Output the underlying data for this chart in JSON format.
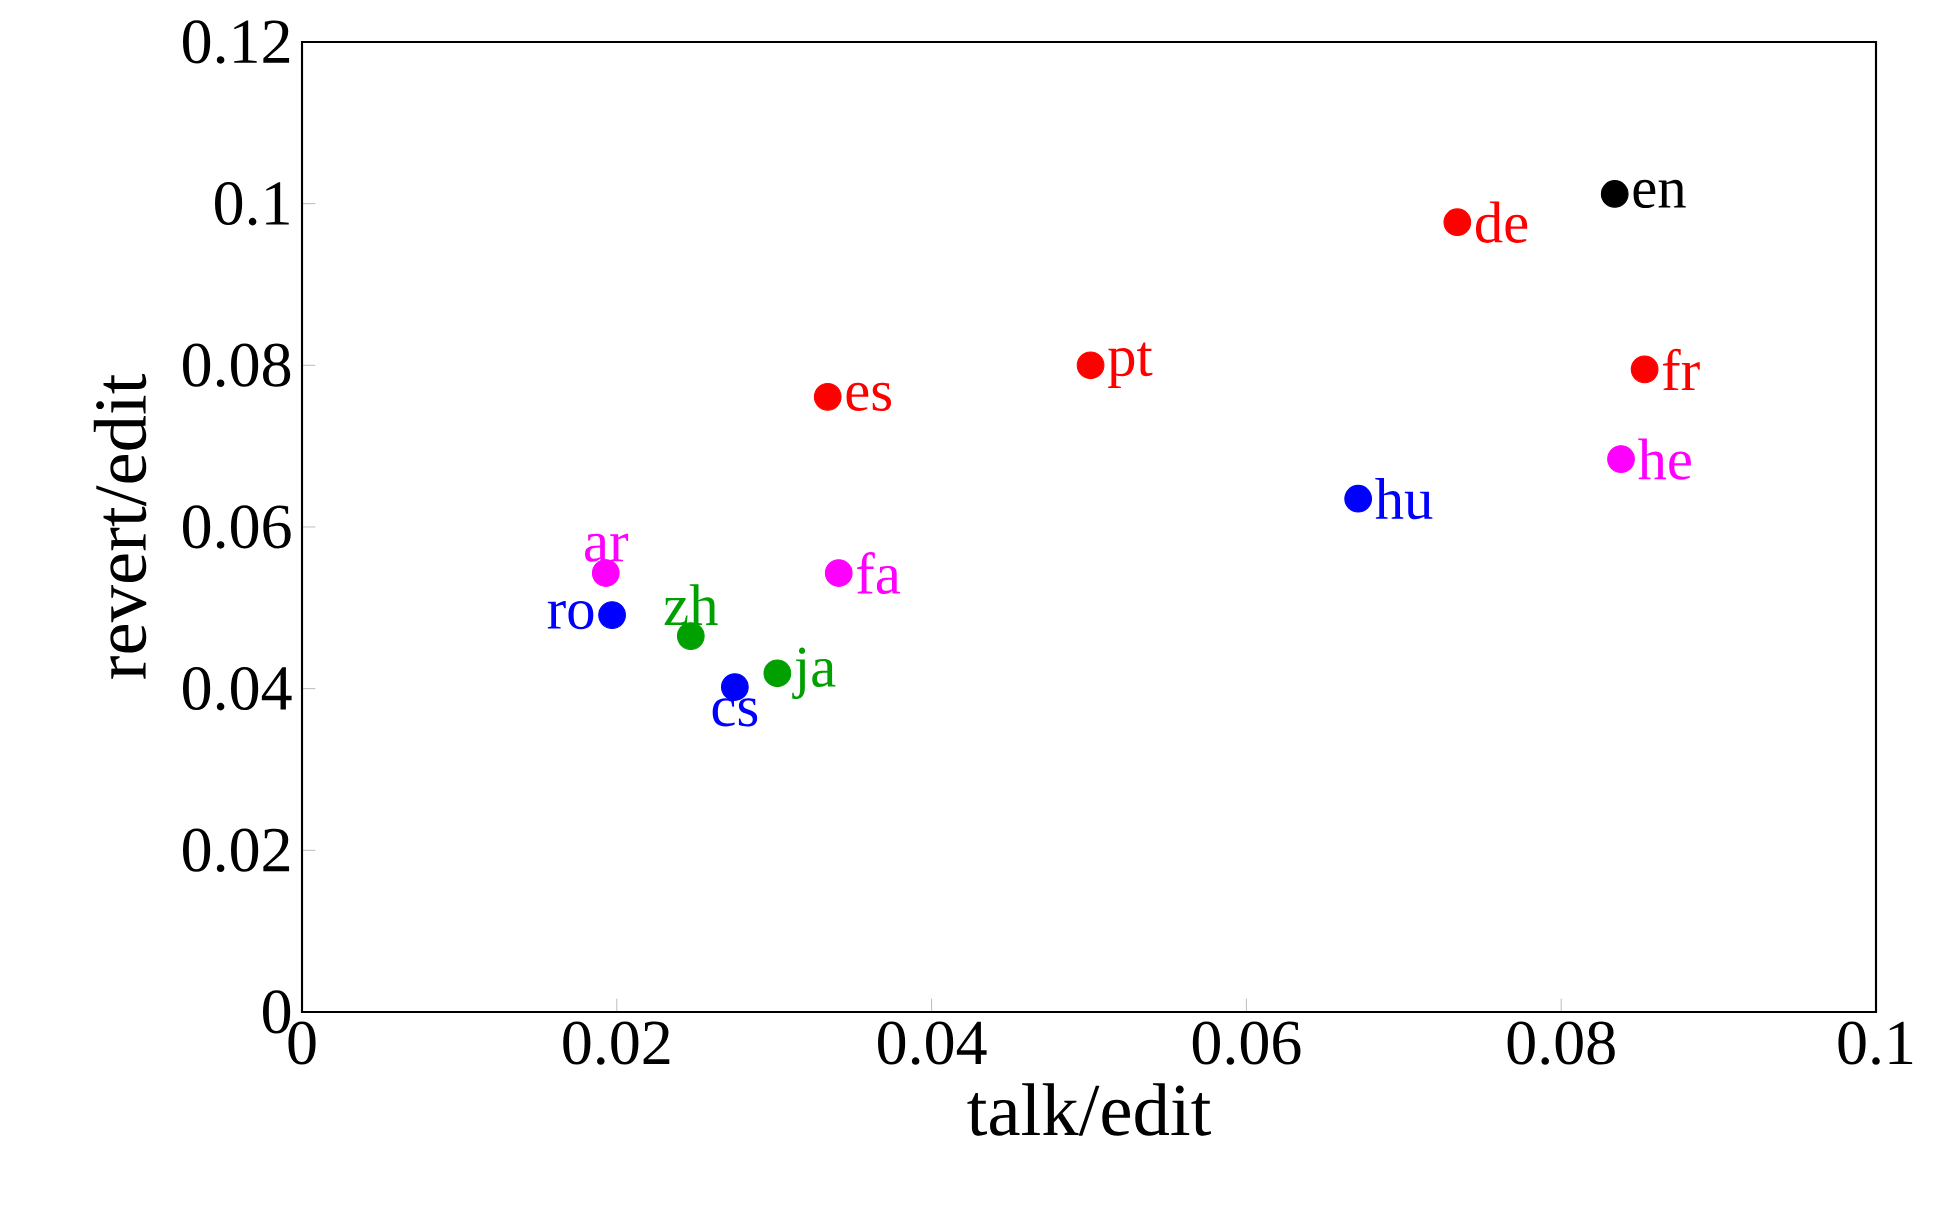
{
  "chart_data": {
    "type": "scatter",
    "xlabel": "talk/edit",
    "ylabel": "revert/edit",
    "marker": "circle",
    "xlim": [
      0,
      0.1
    ],
    "xticks": [
      0,
      0.02,
      0.04,
      0.06,
      0.08,
      0.1
    ],
    "ylim": [
      0,
      0.12
    ],
    "yticks": [
      0,
      0.02,
      0.04,
      0.06,
      0.08,
      0.1,
      0.12
    ],
    "series": [
      {
        "name": "en",
        "color": "#000000",
        "x": [
          0.0834
        ],
        "values": [
          0.1012
        ]
      },
      {
        "name": "de",
        "color": "#ff0000",
        "x": [
          0.0734
        ],
        "values": [
          0.0977
        ]
      },
      {
        "name": "fr",
        "color": "#ff0000",
        "x": [
          0.0853
        ],
        "values": [
          0.0795
        ]
      },
      {
        "name": "pt",
        "color": "#ff0000",
        "x": [
          0.0501
        ],
        "values": [
          0.08
        ]
      },
      {
        "name": "es",
        "color": "#ff0000",
        "x": [
          0.0334
        ],
        "values": [
          0.0761
        ]
      },
      {
        "name": "he",
        "color": "#ff00ff",
        "x": [
          0.0838
        ],
        "values": [
          0.0684
        ]
      },
      {
        "name": "hu",
        "color": "#0000ff",
        "x": [
          0.0671
        ],
        "values": [
          0.0635
        ]
      },
      {
        "name": "ar",
        "color": "#ff00ff",
        "x": [
          0.0193
        ],
        "values": [
          0.0543
        ]
      },
      {
        "name": "fa",
        "color": "#ff00ff",
        "x": [
          0.0341
        ],
        "values": [
          0.0543
        ]
      },
      {
        "name": "ro",
        "color": "#0000ff",
        "x": [
          0.0197
        ],
        "values": [
          0.0491
        ]
      },
      {
        "name": "zh",
        "color": "#00a000",
        "x": [
          0.0247
        ],
        "values": [
          0.0465
        ]
      },
      {
        "name": "ja",
        "color": "#00a000",
        "x": [
          0.0302
        ],
        "values": [
          0.0419
        ]
      },
      {
        "name": "cs",
        "color": "#0000ff",
        "x": [
          0.0275
        ],
        "values": [
          0.0402
        ]
      }
    ]
  }
}
